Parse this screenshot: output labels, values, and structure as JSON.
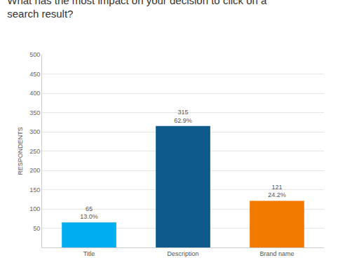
{
  "chart_data": {
    "type": "bar",
    "title": "What has the most impact on your decision to click on a search result?",
    "y_label": "RESPONDENTS",
    "categories": [
      "Title",
      "Description",
      "Brand name"
    ],
    "values": [
      65,
      315,
      121
    ],
    "value_labels": [
      "65\n13.0%",
      "315\n62.9%",
      "121\n24.2%"
    ],
    "colors": [
      "#00aeef",
      "#0e5a8a",
      "#f27a00"
    ],
    "data_labels": true,
    "ylim": [
      0,
      500
    ],
    "yticks": [
      50,
      100,
      150,
      200,
      250,
      300,
      350,
      400,
      450,
      500
    ],
    "grid": true
  }
}
